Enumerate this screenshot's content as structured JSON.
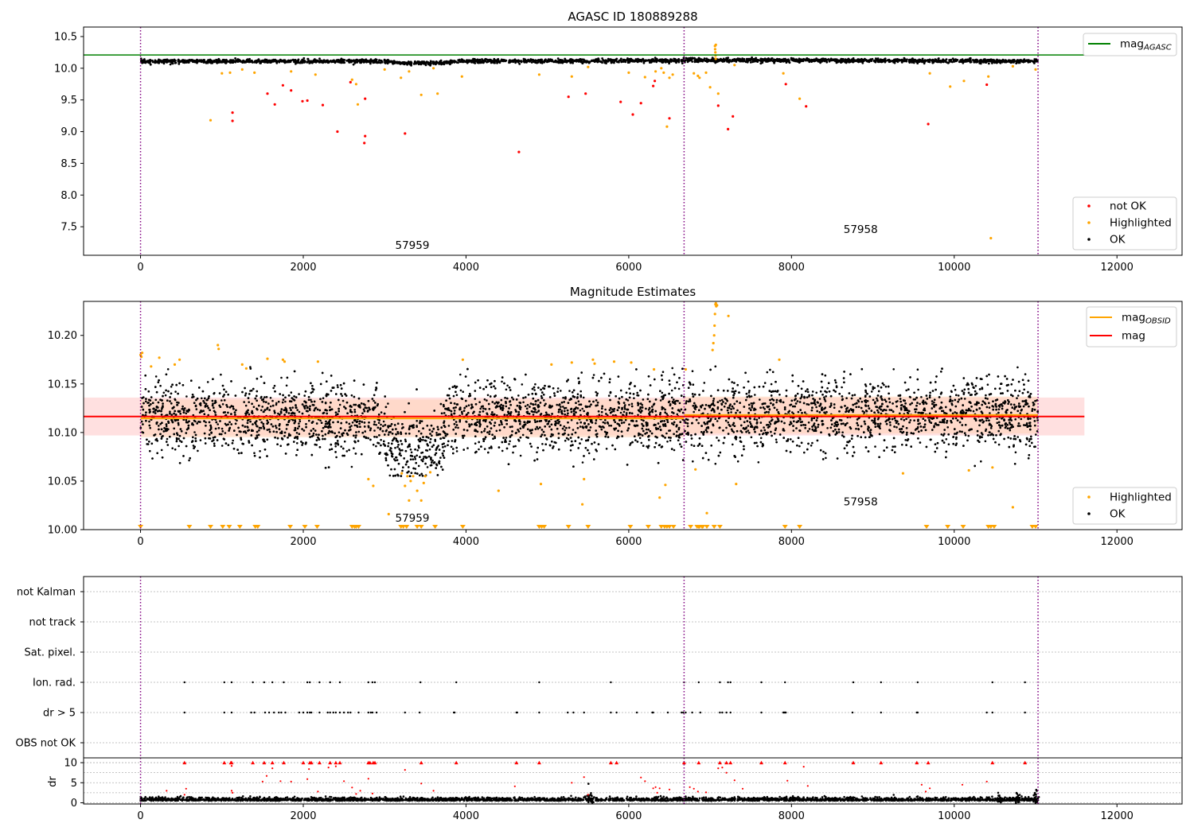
{
  "colors": {
    "ok": "#000000",
    "highlighted": "#ffa500",
    "not_ok": "#ff0000",
    "mag_agasc_line": "#008000",
    "mag_obsid_line": "#ffa500",
    "mag_line": "#ff0000",
    "mag_band": "#ffcccc",
    "obsid_band": "#ffd3b8",
    "obsid_marker": "#800080",
    "grid": "#b0b0b0"
  },
  "chart_data": [
    {
      "id": "agasc",
      "type": "scatter",
      "title": "AGASC ID 180889288",
      "xlim": [
        -700,
        12800
      ],
      "ylim": [
        7.05,
        10.65
      ],
      "x_ticks": [
        0,
        2000,
        4000,
        6000,
        8000,
        10000,
        12000
      ],
      "x_tick_labels": [
        "0",
        "2000",
        "4000",
        "6000",
        "8000",
        "10000",
        "12000"
      ],
      "y_ticks": [
        7.5,
        8.0,
        8.5,
        9.0,
        9.5,
        10.0,
        10.5
      ],
      "y_tick_labels": [
        "7.5",
        "8.0",
        "8.5",
        "9.0",
        "9.5",
        "10.0",
        "10.5"
      ],
      "obsid_boundaries": [
        0,
        6680,
        11030
      ],
      "obsid_labels": [
        {
          "text": "57959",
          "x": 3340,
          "y": 7.15
        },
        {
          "text": "57958",
          "x": 8850,
          "y": 7.4
        }
      ],
      "mag_agasc": {
        "value": 10.21,
        "x_range": [
          -700,
          11600
        ]
      },
      "ok_trend": [
        [
          0,
          10.11
        ],
        [
          2900,
          10.11
        ],
        [
          3200,
          10.08
        ],
        [
          3600,
          10.08
        ],
        [
          3900,
          10.11
        ],
        [
          6600,
          10.12
        ],
        [
          7000,
          10.13
        ],
        [
          11030,
          10.11
        ]
      ],
      "legend_top": [
        {
          "label": "mag",
          "sub": "AGASC",
          "color": "#008000"
        }
      ],
      "legend_bottom": [
        {
          "label": "not OK",
          "color": "#ff0000"
        },
        {
          "label": "Highlighted",
          "color": "#ffa500"
        },
        {
          "label": "OK",
          "color": "#000000"
        }
      ],
      "highlighted_points": [
        [
          860,
          9.18
        ],
        [
          1000,
          9.92
        ],
        [
          1100,
          9.93
        ],
        [
          1250,
          9.98
        ],
        [
          1400,
          9.93
        ],
        [
          1850,
          9.95
        ],
        [
          2150,
          9.9
        ],
        [
          2600,
          9.82
        ],
        [
          2650,
          9.75
        ],
        [
          2670,
          9.43
        ],
        [
          3000,
          9.98
        ],
        [
          3200,
          9.85
        ],
        [
          3300,
          9.95
        ],
        [
          3450,
          9.58
        ],
        [
          3600,
          10.0
        ],
        [
          3650,
          9.6
        ],
        [
          3950,
          9.87
        ],
        [
          4900,
          9.9
        ],
        [
          5300,
          9.87
        ],
        [
          5500,
          10.02
        ],
        [
          6000,
          9.93
        ],
        [
          6200,
          9.86
        ],
        [
          6330,
          9.95
        ],
        [
          6400,
          10.0
        ],
        [
          6430,
          9.93
        ],
        [
          6470,
          9.08
        ],
        [
          6500,
          9.85
        ],
        [
          6540,
          9.9
        ],
        [
          6800,
          9.92
        ],
        [
          6850,
          9.88
        ],
        [
          6870,
          9.85
        ],
        [
          6950,
          9.93
        ],
        [
          7000,
          9.7
        ],
        [
          7060,
          10.35
        ],
        [
          7062,
          10.3
        ],
        [
          7064,
          10.25
        ],
        [
          7066,
          10.2
        ],
        [
          7068,
          10.15
        ],
        [
          7070,
          10.37
        ],
        [
          7100,
          9.6
        ],
        [
          7300,
          10.05
        ],
        [
          7900,
          9.92
        ],
        [
          8100,
          9.52
        ],
        [
          9700,
          9.92
        ],
        [
          9950,
          9.71
        ],
        [
          10120,
          9.8
        ],
        [
          10420,
          9.87
        ],
        [
          10450,
          7.32
        ],
        [
          10720,
          10.03
        ],
        [
          11000,
          9.98
        ]
      ],
      "not_ok_points": [
        [
          1130,
          9.3
        ],
        [
          1130,
          9.17
        ],
        [
          1560,
          9.6
        ],
        [
          1650,
          9.43
        ],
        [
          1750,
          9.73
        ],
        [
          1850,
          9.65
        ],
        [
          1990,
          9.48
        ],
        [
          2050,
          9.49
        ],
        [
          2240,
          9.42
        ],
        [
          2420,
          9.0
        ],
        [
          2580,
          9.78
        ],
        [
          2750,
          8.82
        ],
        [
          2760,
          8.93
        ],
        [
          2760,
          9.52
        ],
        [
          3250,
          8.97
        ],
        [
          4650,
          8.68
        ],
        [
          5260,
          9.55
        ],
        [
          5470,
          9.6
        ],
        [
          5900,
          9.47
        ],
        [
          6050,
          9.27
        ],
        [
          6150,
          9.45
        ],
        [
          6300,
          9.72
        ],
        [
          6320,
          9.8
        ],
        [
          6500,
          9.21
        ],
        [
          7100,
          9.41
        ],
        [
          7220,
          9.04
        ],
        [
          7280,
          9.24
        ],
        [
          7930,
          9.75
        ],
        [
          8180,
          9.4
        ],
        [
          9680,
          9.12
        ],
        [
          10400,
          9.74
        ]
      ]
    },
    {
      "id": "estimates",
      "type": "scatter",
      "title": "Magnitude Estimates",
      "xlim": [
        -700,
        12800
      ],
      "ylim": [
        10.0,
        10.235
      ],
      "x_ticks": [
        0,
        2000,
        4000,
        6000,
        8000,
        10000,
        12000
      ],
      "x_tick_labels": [
        "0",
        "2000",
        "4000",
        "6000",
        "8000",
        "10000",
        "12000"
      ],
      "y_ticks": [
        10.0,
        10.05,
        10.1,
        10.15,
        10.2
      ],
      "y_tick_labels": [
        "10.00",
        "10.05",
        "10.10",
        "10.15",
        "10.20"
      ],
      "obsid_boundaries": [
        0,
        6680,
        11030
      ],
      "obsid_labels": [
        {
          "text": "57959",
          "x": 3340,
          "y": 10.008
        },
        {
          "text": "57958",
          "x": 8850,
          "y": 10.025
        }
      ],
      "mag": {
        "value": 10.1165,
        "band": [
          10.097,
          10.136
        ],
        "x_range": [
          -700,
          11600
        ]
      },
      "mag_obsid": [
        {
          "value": 10.1145,
          "x_range": [
            0,
            6680
          ],
          "band": [
            10.095,
            10.134
          ]
        },
        {
          "value": 10.118,
          "x_range": [
            6680,
            11030
          ],
          "band": [
            10.099,
            10.137
          ]
        }
      ],
      "ok_trend": [
        [
          0,
          10.115
        ],
        [
          2900,
          10.115
        ],
        [
          3050,
          10.085
        ],
        [
          3650,
          10.085
        ],
        [
          3800,
          10.115
        ],
        [
          6680,
          10.115
        ],
        [
          6700,
          10.118
        ],
        [
          11030,
          10.118
        ]
      ],
      "legend_top": [
        {
          "label": "mag",
          "sub": "OBSID",
          "color": "#ffa500"
        },
        {
          "label": "mag",
          "sub": "",
          "color": "#ff0000"
        }
      ],
      "legend_bottom": [
        {
          "label": "Highlighted",
          "color": "#ffa500"
        },
        {
          "label": "OK",
          "color": "#000000"
        }
      ],
      "highlighted_points": [
        [
          0,
          10.18
        ],
        [
          10,
          10.178
        ],
        [
          20,
          10.182
        ],
        [
          130,
          10.168
        ],
        [
          230,
          10.177
        ],
        [
          420,
          10.17
        ],
        [
          480,
          10.175
        ],
        [
          950,
          10.19
        ],
        [
          960,
          10.186
        ],
        [
          1250,
          10.17
        ],
        [
          1300,
          10.166
        ],
        [
          1560,
          10.176
        ],
        [
          1750,
          10.175
        ],
        [
          1770,
          10.173
        ],
        [
          2180,
          10.173
        ],
        [
          2800,
          10.052
        ],
        [
          2860,
          10.045
        ],
        [
          3050,
          10.016
        ],
        [
          3210,
          10.058
        ],
        [
          3250,
          10.045
        ],
        [
          3280,
          10.055
        ],
        [
          3300,
          10.03
        ],
        [
          3320,
          10.05
        ],
        [
          3350,
          10.055
        ],
        [
          3400,
          10.04
        ],
        [
          3450,
          10.03
        ],
        [
          3480,
          10.048
        ],
        [
          3500,
          10.055
        ],
        [
          3560,
          10.059
        ],
        [
          3960,
          10.175
        ],
        [
          4400,
          10.04
        ],
        [
          4920,
          10.047
        ],
        [
          5050,
          10.17
        ],
        [
          5300,
          10.172
        ],
        [
          5430,
          10.026
        ],
        [
          5450,
          10.052
        ],
        [
          5560,
          10.175
        ],
        [
          5580,
          10.171
        ],
        [
          5820,
          10.173
        ],
        [
          6030,
          10.172
        ],
        [
          6310,
          10.165
        ],
        [
          6380,
          10.033
        ],
        [
          6450,
          10.046
        ],
        [
          6700,
          10.165
        ],
        [
          6820,
          10.062
        ],
        [
          6960,
          10.017
        ],
        [
          7030,
          10.185
        ],
        [
          7040,
          10.192
        ],
        [
          7050,
          10.2
        ],
        [
          7055,
          10.21
        ],
        [
          7060,
          10.222
        ],
        [
          7065,
          10.232
        ],
        [
          7070,
          10.233
        ],
        [
          7075,
          10.23
        ],
        [
          7080,
          10.231
        ],
        [
          7085,
          10.231
        ],
        [
          7225,
          10.22
        ],
        [
          7320,
          10.047
        ],
        [
          7850,
          10.175
        ],
        [
          9370,
          10.058
        ],
        [
          10180,
          10.061
        ],
        [
          10470,
          10.064
        ],
        [
          10720,
          10.023
        ]
      ],
      "clipped_markers": [
        0,
        600,
        860,
        1010,
        1090,
        1220,
        1410,
        1440,
        1840,
        2020,
        2170,
        2600,
        2630,
        2650,
        2680,
        3200,
        3230,
        3270,
        3400,
        3450,
        3620,
        3960,
        4900,
        4930,
        4960,
        5260,
        5500,
        6020,
        6240,
        6400,
        6440,
        6470,
        6500,
        6550,
        6760,
        6840,
        6860,
        6870,
        6900,
        6910,
        6960,
        7050,
        7120,
        7920,
        8100,
        9660,
        9920,
        10110,
        10420,
        10450,
        10490,
        10960,
        11000
      ],
      "not_ok_points": []
    },
    {
      "id": "flags",
      "type": "scatter",
      "xlim": [
        -700,
        12800
      ],
      "ylim": [
        -0.5,
        5.5
      ],
      "categories": [
        "OBS not OK",
        "dr > 5",
        "Ion. rad.",
        "Sat. pixel.",
        "not track",
        "not Kalman"
      ],
      "obsid_boundaries": [
        0,
        6680,
        11030
      ],
      "flag_points": {
        "dr > 5": [
          540,
          1030,
          1120,
          1360,
          1400,
          1530,
          1580,
          1640,
          1700,
          1730,
          1780,
          1950,
          2000,
          2050,
          2080,
          2100,
          2200,
          2300,
          2330,
          2370,
          2400,
          2450,
          2500,
          2550,
          2580,
          2680,
          2800,
          2830,
          2850,
          2900,
          3250,
          3430,
          3850,
          3860,
          4620,
          4630,
          4900,
          5250,
          5320,
          5450,
          5780,
          5850,
          6100,
          6290,
          6300,
          6480,
          6650,
          6670,
          6700,
          6780,
          6880,
          7120,
          7150,
          7200,
          7250,
          7630,
          7900,
          7910,
          7920,
          7930,
          8750,
          9100,
          9540,
          9550,
          10400,
          10470,
          10870
        ],
        "Ion. rad.": [
          540,
          1030,
          1120,
          1380,
          1520,
          1620,
          1760,
          2050,
          2080,
          2200,
          2330,
          2450,
          2800,
          2850,
          2880,
          3440,
          3880,
          4900,
          5780,
          6680,
          6860,
          7120,
          7220,
          7250,
          7630,
          7920,
          8760,
          9100,
          9550,
          10470,
          10870
        ]
      }
    },
    {
      "id": "dr",
      "type": "scatter",
      "ylabel": "dr",
      "xlim": [
        -700,
        12800
      ],
      "ylim": [
        -0.3,
        11.2
      ],
      "x_ticks": [
        0,
        2000,
        4000,
        6000,
        8000,
        10000,
        12000
      ],
      "x_tick_labels": [
        "0",
        "2000",
        "4000",
        "6000",
        "8000",
        "10000",
        "12000"
      ],
      "y_ticks": [
        0,
        5,
        10
      ],
      "y_tick_labels": [
        "0",
        "5",
        "10"
      ],
      "y_gridlines": [
        0,
        2.5,
        5,
        7.5,
        10
      ],
      "obsid_boundaries": [
        0,
        6680,
        11030
      ],
      "ok_baseline": {
        "mean": 0.7,
        "spread": 0.55,
        "x_range": [
          0,
          11030
        ]
      },
      "clusters": [
        [
          5530,
          2.6
        ],
        [
          10550,
          2.0
        ],
        [
          10780,
          2.0
        ],
        [
          11000,
          2.3
        ]
      ],
      "red_at_10": [
        540,
        1030,
        1110,
        1120,
        1380,
        1520,
        1620,
        1760,
        2000,
        2080,
        2100,
        2200,
        2330,
        2400,
        2450,
        2800,
        2820,
        2860,
        2880,
        3450,
        3880,
        4620,
        4900,
        5780,
        5850,
        6680,
        6860,
        7120,
        7200,
        7250,
        7630,
        7920,
        8760,
        9100,
        9540,
        9680,
        10470,
        10870
      ],
      "red_points": [
        [
          320,
          3.0
        ],
        [
          540,
          2.0
        ],
        [
          560,
          3.5
        ],
        [
          1120,
          9.2
        ],
        [
          1120,
          3.0
        ],
        [
          1130,
          2.5
        ],
        [
          1500,
          5.3
        ],
        [
          1550,
          6.7
        ],
        [
          1620,
          8.6
        ],
        [
          1720,
          5.4
        ],
        [
          1850,
          5.3
        ],
        [
          2050,
          5.9
        ],
        [
          2070,
          8.4
        ],
        [
          2180,
          2.8
        ],
        [
          2310,
          8.8
        ],
        [
          2400,
          9.1
        ],
        [
          2500,
          5.4
        ],
        [
          2600,
          3.8
        ],
        [
          2650,
          2.2
        ],
        [
          2700,
          3.0
        ],
        [
          2800,
          6.0
        ],
        [
          2850,
          2.3
        ],
        [
          3250,
          8.2
        ],
        [
          3450,
          4.8
        ],
        [
          3600,
          3.0
        ],
        [
          4600,
          4.1
        ],
        [
          5300,
          5.0
        ],
        [
          5450,
          6.4
        ],
        [
          5500,
          2.0
        ],
        [
          6150,
          6.3
        ],
        [
          6200,
          5.4
        ],
        [
          6300,
          3.6
        ],
        [
          6330,
          3.9
        ],
        [
          6350,
          2.5
        ],
        [
          6380,
          3.6
        ],
        [
          6500,
          3.3
        ],
        [
          6750,
          3.9
        ],
        [
          6800,
          3.5
        ],
        [
          6850,
          2.8
        ],
        [
          6950,
          2.6
        ],
        [
          7100,
          8.6
        ],
        [
          7150,
          8.8
        ],
        [
          7200,
          7.5
        ],
        [
          7300,
          5.6
        ],
        [
          7400,
          3.5
        ],
        [
          7950,
          5.5
        ],
        [
          8150,
          9.0
        ],
        [
          8200,
          4.2
        ],
        [
          9600,
          4.5
        ],
        [
          9650,
          2.8
        ],
        [
          9700,
          3.6
        ],
        [
          10100,
          4.5
        ],
        [
          10400,
          5.3
        ]
      ]
    }
  ]
}
